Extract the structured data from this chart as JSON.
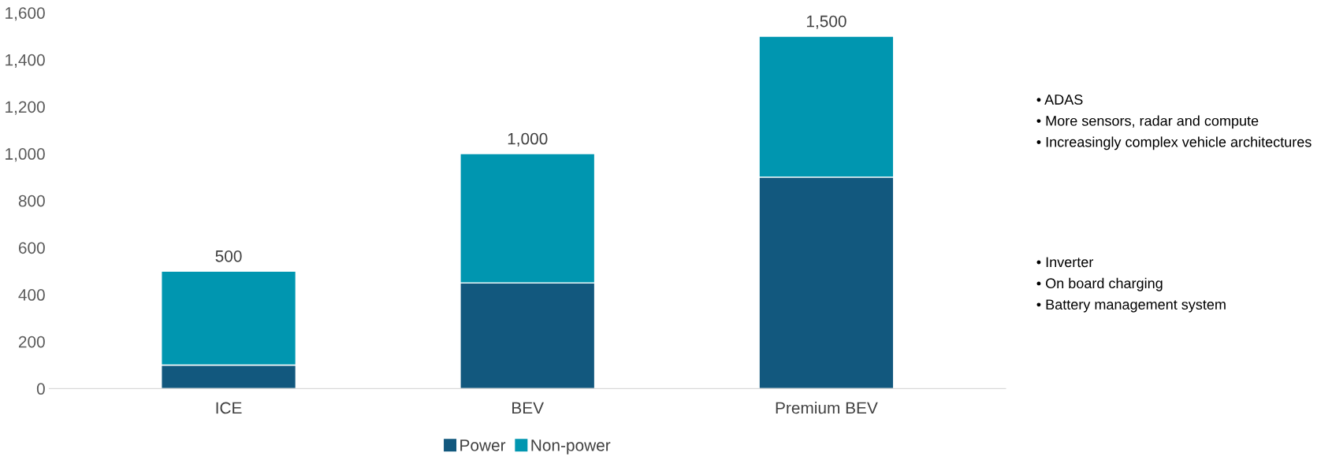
{
  "chart_data": {
    "type": "bar",
    "stacked": true,
    "categories": [
      "ICE",
      "BEV",
      "Premium BEV"
    ],
    "series": [
      {
        "name": "Power",
        "color": "#12587e",
        "values": [
          100,
          450,
          900
        ]
      },
      {
        "name": "Non-power",
        "color": "#0096b0",
        "values": [
          400,
          550,
          600
        ]
      }
    ],
    "totals": [
      "500",
      "1,000",
      "1,500"
    ],
    "ylim": [
      0,
      1600
    ],
    "yticks": [
      0,
      200,
      400,
      600,
      800,
      {
        "value": 1000,
        "label": "1,000"
      },
      {
        "value": 1200,
        "label": "1,200"
      },
      {
        "value": 1400,
        "label": "1,400"
      },
      {
        "value": 1600,
        "label": "1,600"
      }
    ],
    "legend": "bottom",
    "annotations": [
      "• ADAS",
      "• More sensors, radar and compute",
      "• Increasingly complex vehicle architectures",
      "• Inverter",
      "• On board charging",
      "• Battery management system"
    ]
  }
}
